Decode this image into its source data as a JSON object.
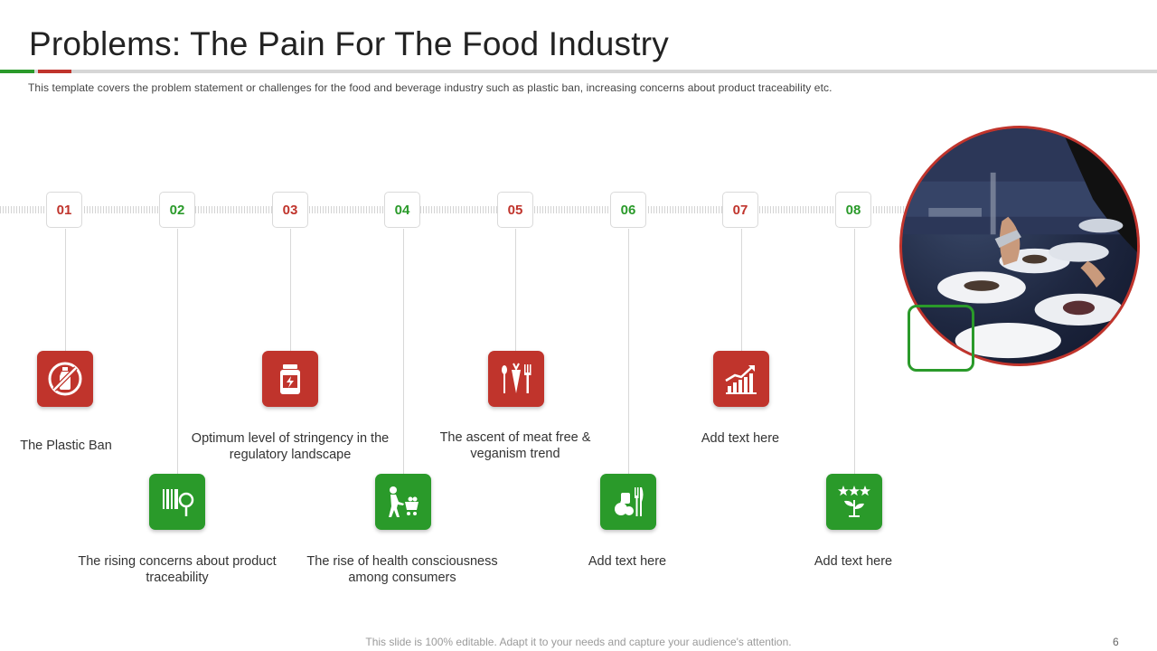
{
  "slide": {
    "title": "Problems: The Pain For The Food Industry",
    "subtitle": "This template covers the problem statement or challenges for the food and beverage  industry such as plastic ban, increasing concerns about product traceability etc.",
    "footer": "This slide is 100% editable. Adapt it to your needs and capture your audience's attention.",
    "page_number": "6"
  },
  "colors": {
    "red": "#c0342c",
    "green": "#2a9a2a"
  },
  "steps": [
    {
      "number": "01",
      "label": "The Plastic Ban",
      "color": "red",
      "icon": "no-bottle-icon"
    },
    {
      "number": "02",
      "label": "The rising concerns about product traceability",
      "color": "green",
      "icon": "barcode-magnifier-icon"
    },
    {
      "number": "03",
      "label": "Optimum level of stringency in the regulatory landscape",
      "color": "red",
      "icon": "supplement-jar-icon"
    },
    {
      "number": "04",
      "label": "The rise of health consciousness among consumers",
      "color": "green",
      "icon": "person-shopping-cart-icon"
    },
    {
      "number": "05",
      "label": "The ascent of meat free & veganism trend",
      "color": "red",
      "icon": "spoon-carrot-fork-icon"
    },
    {
      "number": "06",
      "label": "Add text here",
      "color": "green",
      "icon": "fruit-cutlery-icon"
    },
    {
      "number": "07",
      "label": "Add text here",
      "color": "red",
      "icon": "growth-chart-icon"
    },
    {
      "number": "08",
      "label": "Add text here",
      "color": "green",
      "icon": "rated-plant-icon"
    }
  ]
}
